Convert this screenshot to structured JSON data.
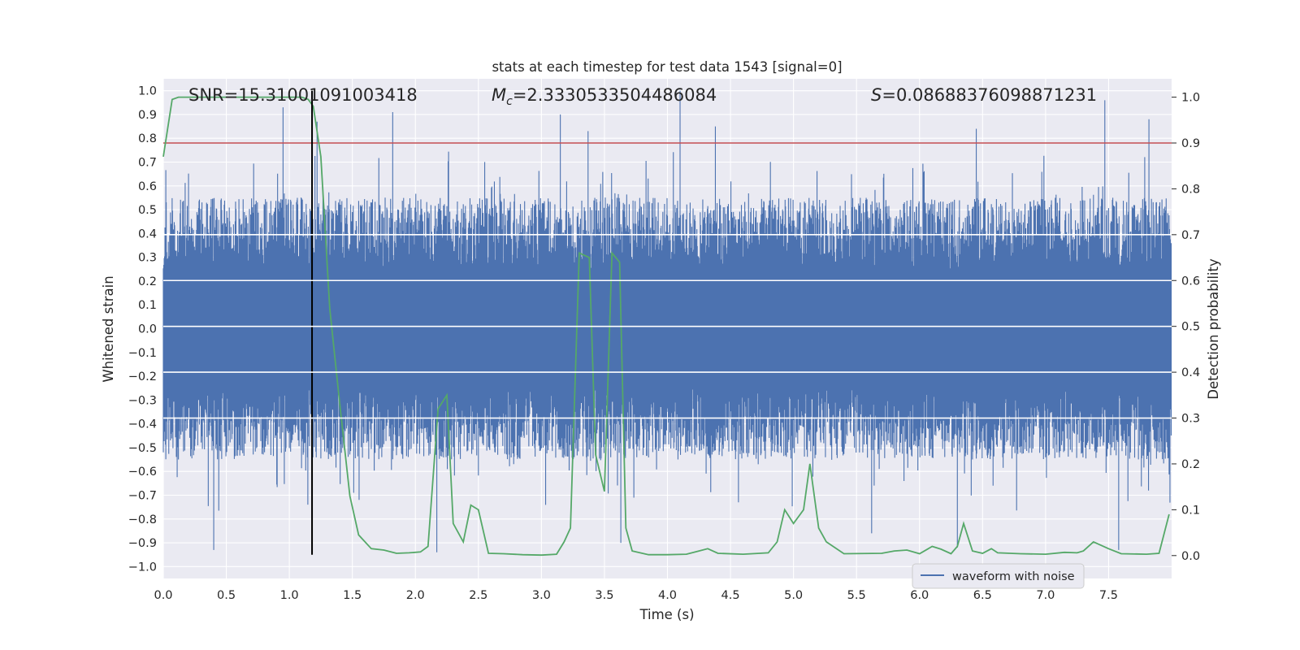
{
  "chart_data": {
    "type": "line",
    "title": "stats at each timestep for test data 1543 [signal=0]",
    "xlabel": "Time (s)",
    "ylabel_left": "Whitened strain",
    "ylabel_right": "Detection probability",
    "xlim": [
      0.0,
      8.0
    ],
    "ylim_left": [
      -1.05,
      1.05
    ],
    "ylim_right": [
      -0.05,
      1.04
    ],
    "x_ticks": [
      0.0,
      0.5,
      1.0,
      1.5,
      2.0,
      2.5,
      3.0,
      3.5,
      4.0,
      4.5,
      5.0,
      5.5,
      6.0,
      6.5,
      7.0,
      7.5
    ],
    "x_tick_labels": [
      "0.0",
      "0.5",
      "1.0",
      "1.5",
      "2.0",
      "2.5",
      "3.0",
      "3.5",
      "4.0",
      "4.5",
      "5.0",
      "5.5",
      "6.0",
      "6.5",
      "7.0",
      "7.5"
    ],
    "y_left_ticks": [
      1.0,
      0.9,
      0.8,
      0.7,
      0.6,
      0.5,
      0.4,
      0.3,
      0.2,
      0.1,
      0.0,
      -0.1,
      -0.2,
      -0.3,
      -0.4,
      -0.5,
      -0.6,
      -0.7,
      -0.8,
      -0.9,
      -1.0
    ],
    "y_left_tick_labels": [
      "1.0",
      "0.9",
      "0.8",
      "0.7",
      "0.6",
      "0.5",
      "0.4",
      "0.3",
      "0.2",
      "0.1",
      "0.0",
      "−0.1",
      "−0.2",
      "−0.3",
      "−0.4",
      "−0.5",
      "−0.6",
      "−0.7",
      "−0.8",
      "−0.9",
      "−1.0"
    ],
    "y_right_ticks": [
      1.0,
      0.9,
      0.8,
      0.7,
      0.6,
      0.5,
      0.4,
      0.3,
      0.2,
      0.1,
      0.0
    ],
    "y_right_tick_labels": [
      "1.0",
      "0.9",
      "0.8",
      "0.7",
      "0.6",
      "0.5",
      "0.4",
      "0.3",
      "0.2",
      "0.1",
      "0.0"
    ],
    "annotations": {
      "snr": "SNR=15.31001091003418",
      "mc_symbol": "M",
      "mc_sub": "c",
      "mc_value": "=2.3330533504486084",
      "s_symbol": "S",
      "s_value": "=0.08688376098871231"
    },
    "legend": {
      "label": "waveform with noise",
      "position": "lower-right"
    },
    "threshold": {
      "value": 0.9,
      "axis": "right",
      "color": "#c44e52"
    },
    "event_marker": {
      "x": 1.18,
      "y_from": -0.95,
      "y_to": 1.0,
      "color": "#000000"
    },
    "series": [
      {
        "name": "waveform with noise",
        "axis": "left",
        "color": "#4c72b0",
        "envelope": "noise band, amplitude ~0.4-0.6 with spikes up to ~0.95 and down to ~-0.94",
        "spikes": [
          {
            "x": 0.4,
            "y": -0.93
          },
          {
            "x": 0.95,
            "y": 0.93
          },
          {
            "x": 1.22,
            "y": 0.87
          },
          {
            "x": 1.82,
            "y": 0.91
          },
          {
            "x": 2.17,
            "y": -0.94
          },
          {
            "x": 3.15,
            "y": 0.9
          },
          {
            "x": 3.37,
            "y": 0.83
          },
          {
            "x": 3.63,
            "y": -0.9
          },
          {
            "x": 4.1,
            "y": 1.0
          },
          {
            "x": 4.38,
            "y": 0.85
          },
          {
            "x": 5.62,
            "y": -0.86
          },
          {
            "x": 6.3,
            "y": -0.92
          },
          {
            "x": 6.45,
            "y": 0.84
          },
          {
            "x": 7.47,
            "y": 0.96
          },
          {
            "x": 7.58,
            "y": -0.93
          },
          {
            "x": 7.82,
            "y": 0.88
          }
        ]
      },
      {
        "name": "detection probability",
        "axis": "right",
        "color": "#55a868",
        "x": [
          0.0,
          0.07,
          0.12,
          0.2,
          0.4,
          0.6,
          0.8,
          1.0,
          1.1,
          1.15,
          1.19,
          1.25,
          1.32,
          1.4,
          1.48,
          1.55,
          1.65,
          1.75,
          1.85,
          1.95,
          2.04,
          2.1,
          2.18,
          2.25,
          2.3,
          2.38,
          2.44,
          2.5,
          2.58,
          2.7,
          2.85,
          3.0,
          3.12,
          3.18,
          3.23,
          3.3,
          3.38,
          3.43,
          3.5,
          3.56,
          3.62,
          3.67,
          3.72,
          3.85,
          4.0,
          4.15,
          4.25,
          4.32,
          4.4,
          4.6,
          4.8,
          4.87,
          4.93,
          5.0,
          5.08,
          5.13,
          5.2,
          5.26,
          5.4,
          5.7,
          5.8,
          5.9,
          6.0,
          6.1,
          6.17,
          6.25,
          6.3,
          6.35,
          6.42,
          6.5,
          6.57,
          6.62,
          6.8,
          7.0,
          7.15,
          7.25,
          7.3,
          7.38,
          7.5,
          7.6,
          7.8,
          7.9,
          7.98
        ],
        "values": [
          0.87,
          0.995,
          1.0,
          1.0,
          1.0,
          1.0,
          1.0,
          1.0,
          1.0,
          0.995,
          0.98,
          0.87,
          0.54,
          0.33,
          0.13,
          0.045,
          0.015,
          0.012,
          0.005,
          0.006,
          0.008,
          0.02,
          0.32,
          0.35,
          0.07,
          0.03,
          0.11,
          0.1,
          0.005,
          0.004,
          0.002,
          0.001,
          0.003,
          0.03,
          0.06,
          0.66,
          0.65,
          0.22,
          0.14,
          0.66,
          0.64,
          0.06,
          0.01,
          0.002,
          0.002,
          0.003,
          0.01,
          0.015,
          0.005,
          0.003,
          0.006,
          0.03,
          0.1,
          0.07,
          0.1,
          0.2,
          0.06,
          0.03,
          0.004,
          0.005,
          0.01,
          0.012,
          0.004,
          0.02,
          0.014,
          0.004,
          0.02,
          0.07,
          0.01,
          0.005,
          0.015,
          0.006,
          0.004,
          0.003,
          0.007,
          0.006,
          0.01,
          0.03,
          0.015,
          0.004,
          0.003,
          0.005,
          0.09
        ]
      }
    ]
  }
}
